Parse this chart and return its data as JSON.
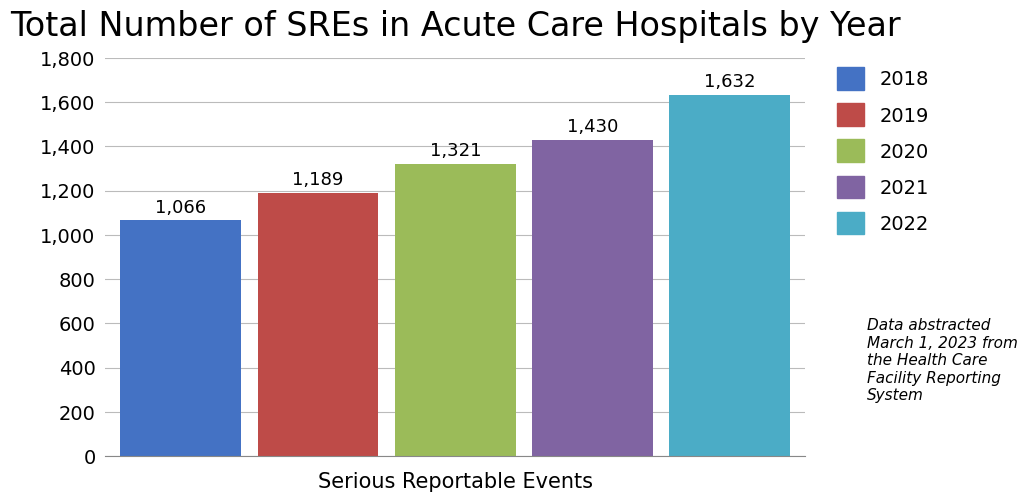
{
  "title": "Total Number of SREs in Acute Care Hospitals by Year",
  "xlabel": "Serious Reportable Events",
  "years": [
    "2018",
    "2019",
    "2020",
    "2021",
    "2022"
  ],
  "values": [
    1066,
    1189,
    1321,
    1430,
    1632
  ],
  "labels": [
    "1,066",
    "1,189",
    "1,321",
    "1,430",
    "1,632"
  ],
  "bar_colors": [
    "#4472C4",
    "#BE4B48",
    "#9BBB59",
    "#8064A2",
    "#4BACC6"
  ],
  "legend_labels": [
    "2018",
    "2019",
    "2020",
    "2021",
    "2022"
  ],
  "ylim": [
    0,
    1800
  ],
  "yticks": [
    0,
    200,
    400,
    600,
    800,
    1000,
    1200,
    1400,
    1600,
    1800
  ],
  "ytick_labels": [
    "0",
    "200",
    "400",
    "600",
    "800",
    "1,000",
    "1,200",
    "1,400",
    "1,600",
    "1,800"
  ],
  "annotation_text": "Data abstracted\nMarch 1, 2023 from\nthe Health Care\nFacility Reporting\nSystem",
  "background_color": "#FFFFFF",
  "title_fontsize": 24,
  "label_fontsize": 13,
  "tick_fontsize": 14,
  "xlabel_fontsize": 15,
  "legend_fontsize": 14,
  "annotation_fontsize": 11,
  "bar_width": 0.88
}
